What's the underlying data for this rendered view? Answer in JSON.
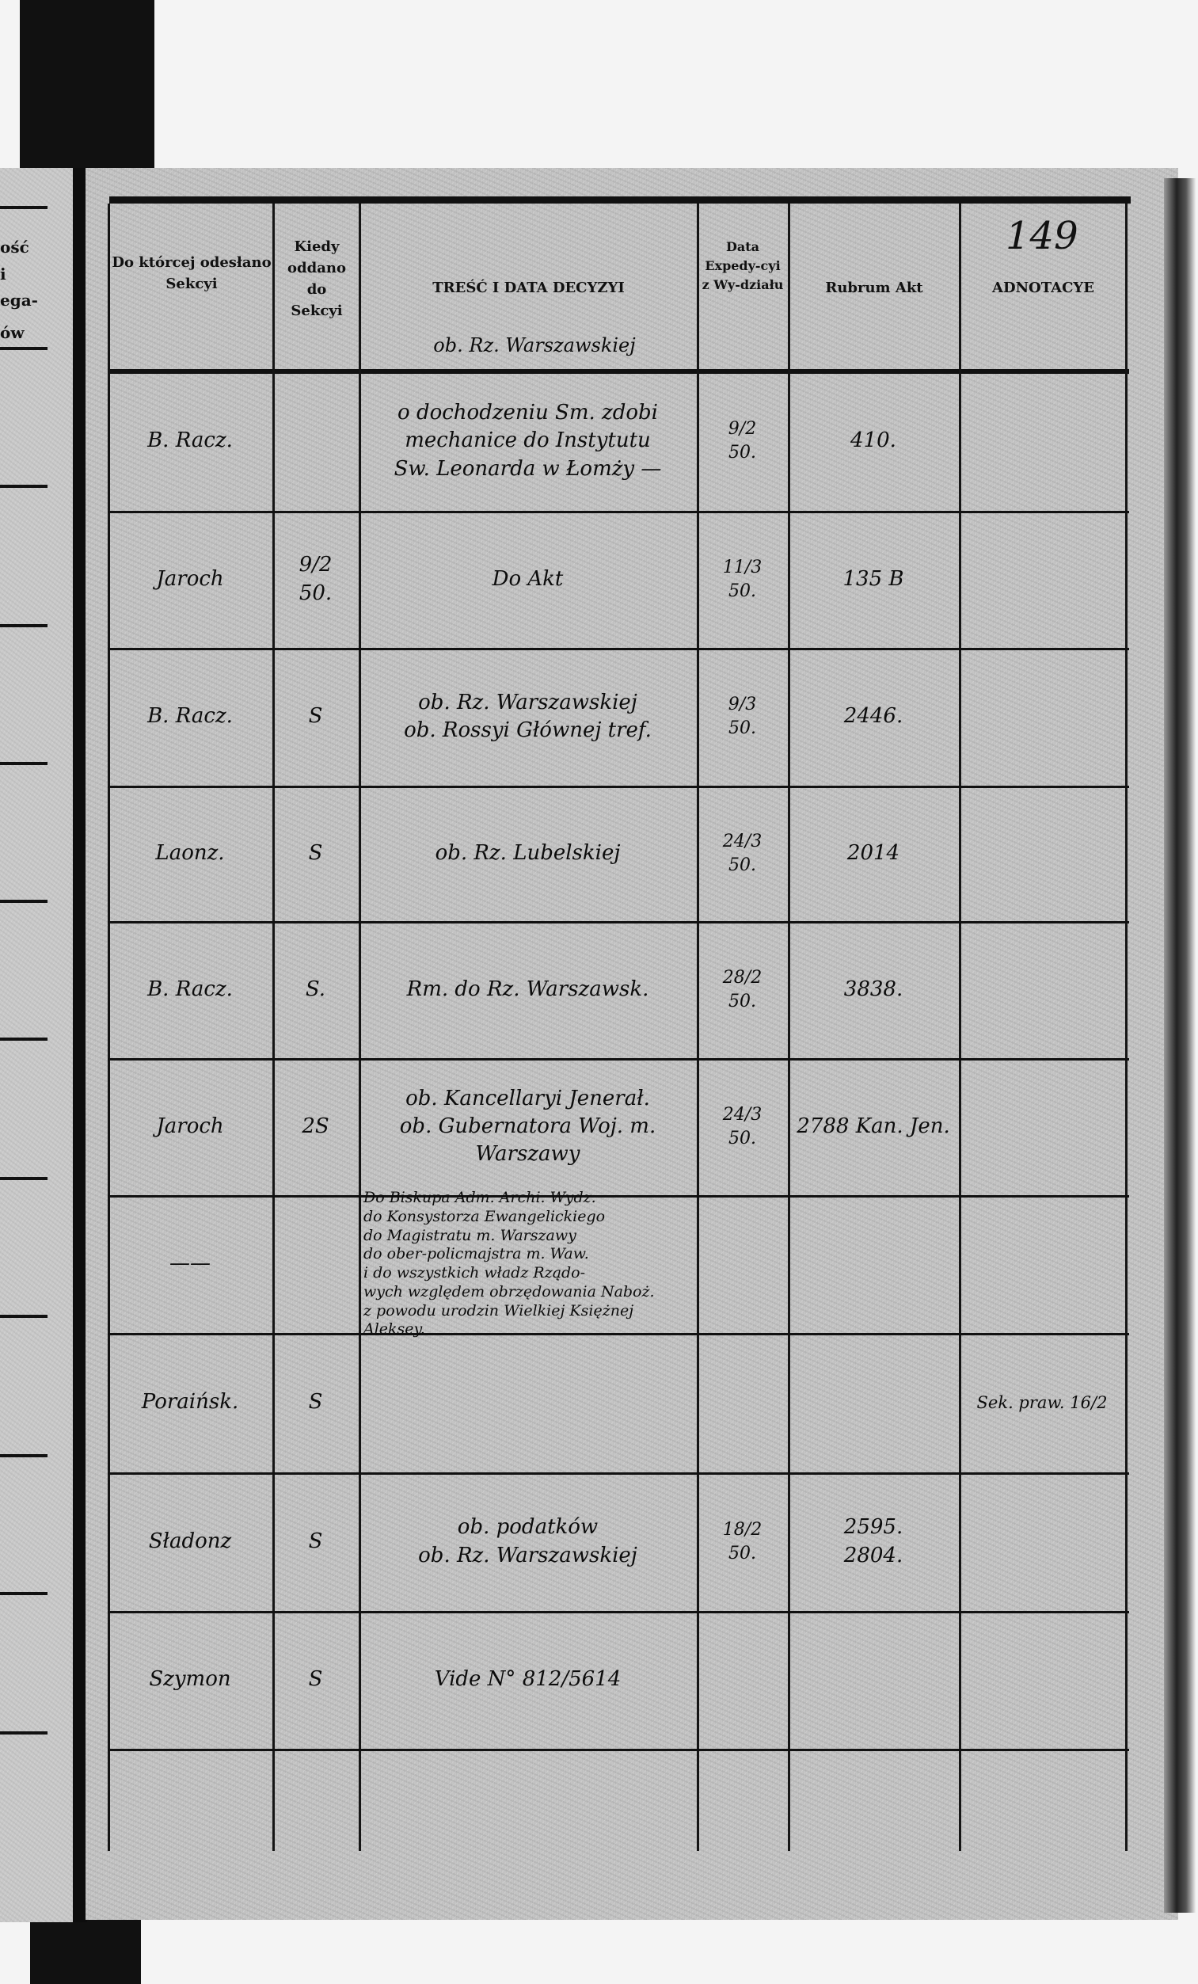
{
  "page_number": "149",
  "left_page_fragments": [
    "ość",
    "i",
    "ega-",
    "ów"
  ],
  "headers": {
    "section": "Do którcej odesłano Sekcyi",
    "when": "Kiedy oddano do Sekcyi",
    "content": "TREŚĆ I DATA DECYZYI",
    "date": "Data Expedy-cyi z Wy-działu",
    "rubrum": "Rubrum Akt",
    "notes": "ADNOTACYE"
  },
  "heading_note": "ob. Rz. Warszawskiej",
  "rows": [
    {
      "section": "B. Racz.",
      "when": "",
      "content": "o dochodzeniu Sm. zdobi\nmechanice do Instytutu\nSw. Leonarda w Łomży —",
      "date": "9/2\n50.",
      "rubrum": "410.",
      "notes": ""
    },
    {
      "section": "Jaroch",
      "when": "9/2\n50.",
      "content": "Do Akt",
      "date": "11/3\n50.",
      "rubrum": "135 B",
      "notes": ""
    },
    {
      "section": "B. Racz.",
      "when": "S",
      "content": "ob. Rz. Warszawskiej\nob. Rossyi Głównej tref.",
      "date": "9/3\n50.",
      "rubrum": "2446.",
      "notes": ""
    },
    {
      "section": "Laonz.",
      "when": "S",
      "content": "ob. Rz. Lubelskiej",
      "date": "24/3\n50.",
      "rubrum": "2014",
      "notes": ""
    },
    {
      "section": "B. Racz.",
      "when": "S.",
      "content": "Rm. do Rz. Warszawsk.",
      "date": "28/2\n50.",
      "rubrum": "3838.",
      "notes": ""
    },
    {
      "section": "Jaroch",
      "when": "2S",
      "content": "ob. Kancellaryi Jenerał.\nob. Gubernatora Woj. m.\nWarszawy",
      "date": "24/3\n50.",
      "rubrum": "2788 Kan. Jen.",
      "notes": ""
    },
    {
      "section": "——",
      "when": "",
      "content": "Do Biskupa Adm. Archi. Wydz.\ndo Konsystorza Ewangelickiego\ndo Magistratu m. Warszawy\ndo ober-policmajstra m. Waw.\ni do wszystkich władz Rządo-\nwych względem obrzędowania Naboż.\nz powodu urodzin Wielkiej Księżnej Aleksey.",
      "date": "",
      "rubrum": "",
      "notes": ""
    },
    {
      "section": "Poraińsk.",
      "when": "S",
      "content": "",
      "date": "",
      "rubrum": "",
      "notes": "Sek. praw. 16/2"
    },
    {
      "section": "Sładonz",
      "when": "S",
      "content": "ob. podatków\nob. Rz. Warszawskiej",
      "date": "18/2\n50.",
      "rubrum": "2595.\n2804.",
      "notes": ""
    },
    {
      "section": "Szymon",
      "when": "S",
      "content": "Vide N° 812/5614",
      "date": "",
      "rubrum": "",
      "notes": ""
    },
    {
      "section": "",
      "when": "",
      "content": "",
      "date": "",
      "rubrum": "",
      "notes": ""
    }
  ]
}
